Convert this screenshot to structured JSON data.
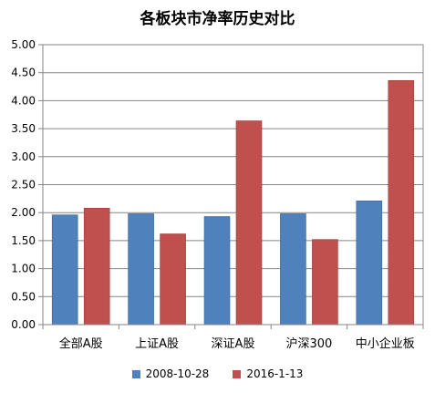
{
  "chart_data": {
    "type": "bar",
    "title": "各板块市净率历史对比",
    "categories": [
      "全部A股",
      "上证A股",
      "深证A股",
      "沪深300",
      "中小企业板"
    ],
    "series": [
      {
        "name": "2008-10-28",
        "color": "#4f81bd",
        "values": [
          1.96,
          1.98,
          1.93,
          1.98,
          2.21
        ]
      },
      {
        "name": "2016-1-13",
        "color": "#c0504d",
        "values": [
          2.08,
          1.62,
          3.64,
          1.52,
          4.36
        ]
      }
    ],
    "ylim": [
      0,
      5
    ],
    "yticks": [
      "0.00",
      "0.50",
      "1.00",
      "1.50",
      "2.00",
      "2.50",
      "3.00",
      "3.50",
      "4.00",
      "4.50",
      "5.00"
    ],
    "grid": true,
    "legend_position": "bottom",
    "xlabel": "",
    "ylabel": ""
  }
}
